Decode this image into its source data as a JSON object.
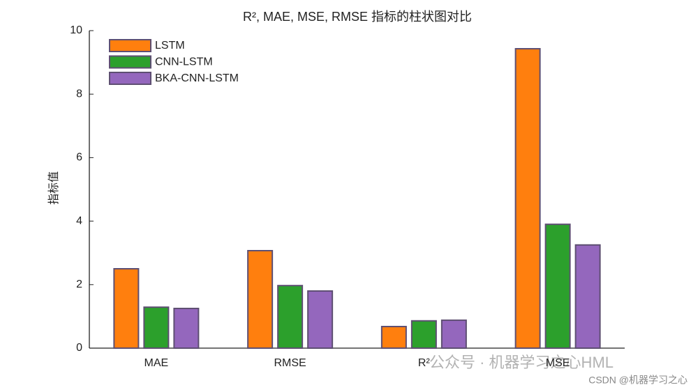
{
  "chart_data": {
    "type": "bar",
    "title": "R², MAE, MSE, RMSE 指标的柱状图对比",
    "ylabel": "指标值",
    "categories": [
      "MAE",
      "RMSE",
      "R²",
      "MSE"
    ],
    "series": [
      {
        "name": "LSTM",
        "color": "#ff7f0e",
        "values": [
          2.5,
          3.07,
          0.68,
          9.43
        ]
      },
      {
        "name": "CNN-LSTM",
        "color": "#2ca02c",
        "values": [
          1.29,
          1.97,
          0.86,
          3.9
        ]
      },
      {
        "name": "BKA-CNN-LSTM",
        "color": "#9467bd",
        "values": [
          1.25,
          1.8,
          0.88,
          3.25
        ]
      }
    ],
    "ylim": [
      0,
      10
    ],
    "yticks": [
      0,
      2,
      4,
      6,
      8,
      10
    ],
    "legend": "upper-left",
    "watermarks": [
      "公众号 · 机器学习之心HML",
      "CSDN @机器学习之心"
    ]
  }
}
